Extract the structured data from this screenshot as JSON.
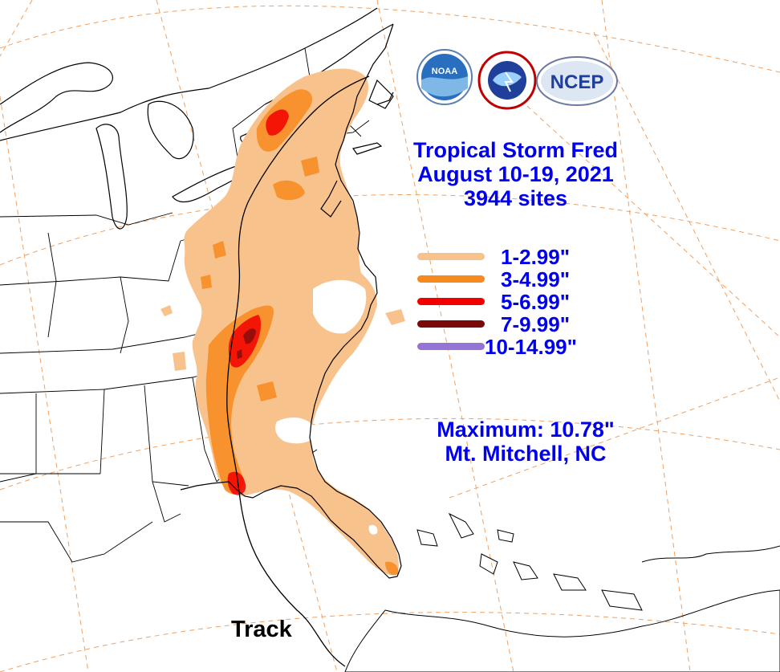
{
  "title": {
    "line1": "Tropical Storm Fred",
    "line2": "August 10-19, 2021",
    "line3": "3944 sites"
  },
  "legend": [
    {
      "label": "1-2.99\"",
      "color": "#f8c28c"
    },
    {
      "label": "3-4.99\"",
      "color": "#f78a1e"
    },
    {
      "label": "5-6.99\"",
      "color": "#f20000"
    },
    {
      "label": "7-9.99\"",
      "color": "#7a0a0a"
    },
    {
      "label": "10-14.99\"",
      "color": "#9475d6"
    }
  ],
  "maximum": {
    "value_line": "Maximum: 10.78\"",
    "location": "Mt. Mitchell, NC"
  },
  "track_label": "Track",
  "logos": {
    "noaa": "NOAA",
    "nws": "NATIONAL WEATHER SERVICE",
    "ncep": "NCEP"
  },
  "colors": {
    "text_accent": "#0000ee",
    "rain_light": "#f8c28c",
    "rain_medium": "#f78a1e",
    "rain_high": "#f20000",
    "rain_very_high": "#7a0a0a",
    "rain_extreme": "#9475d6",
    "gridline": "#f0a060"
  },
  "icons": [
    "noaa-logo-icon",
    "nws-logo-icon",
    "ncep-logo-icon"
  ]
}
